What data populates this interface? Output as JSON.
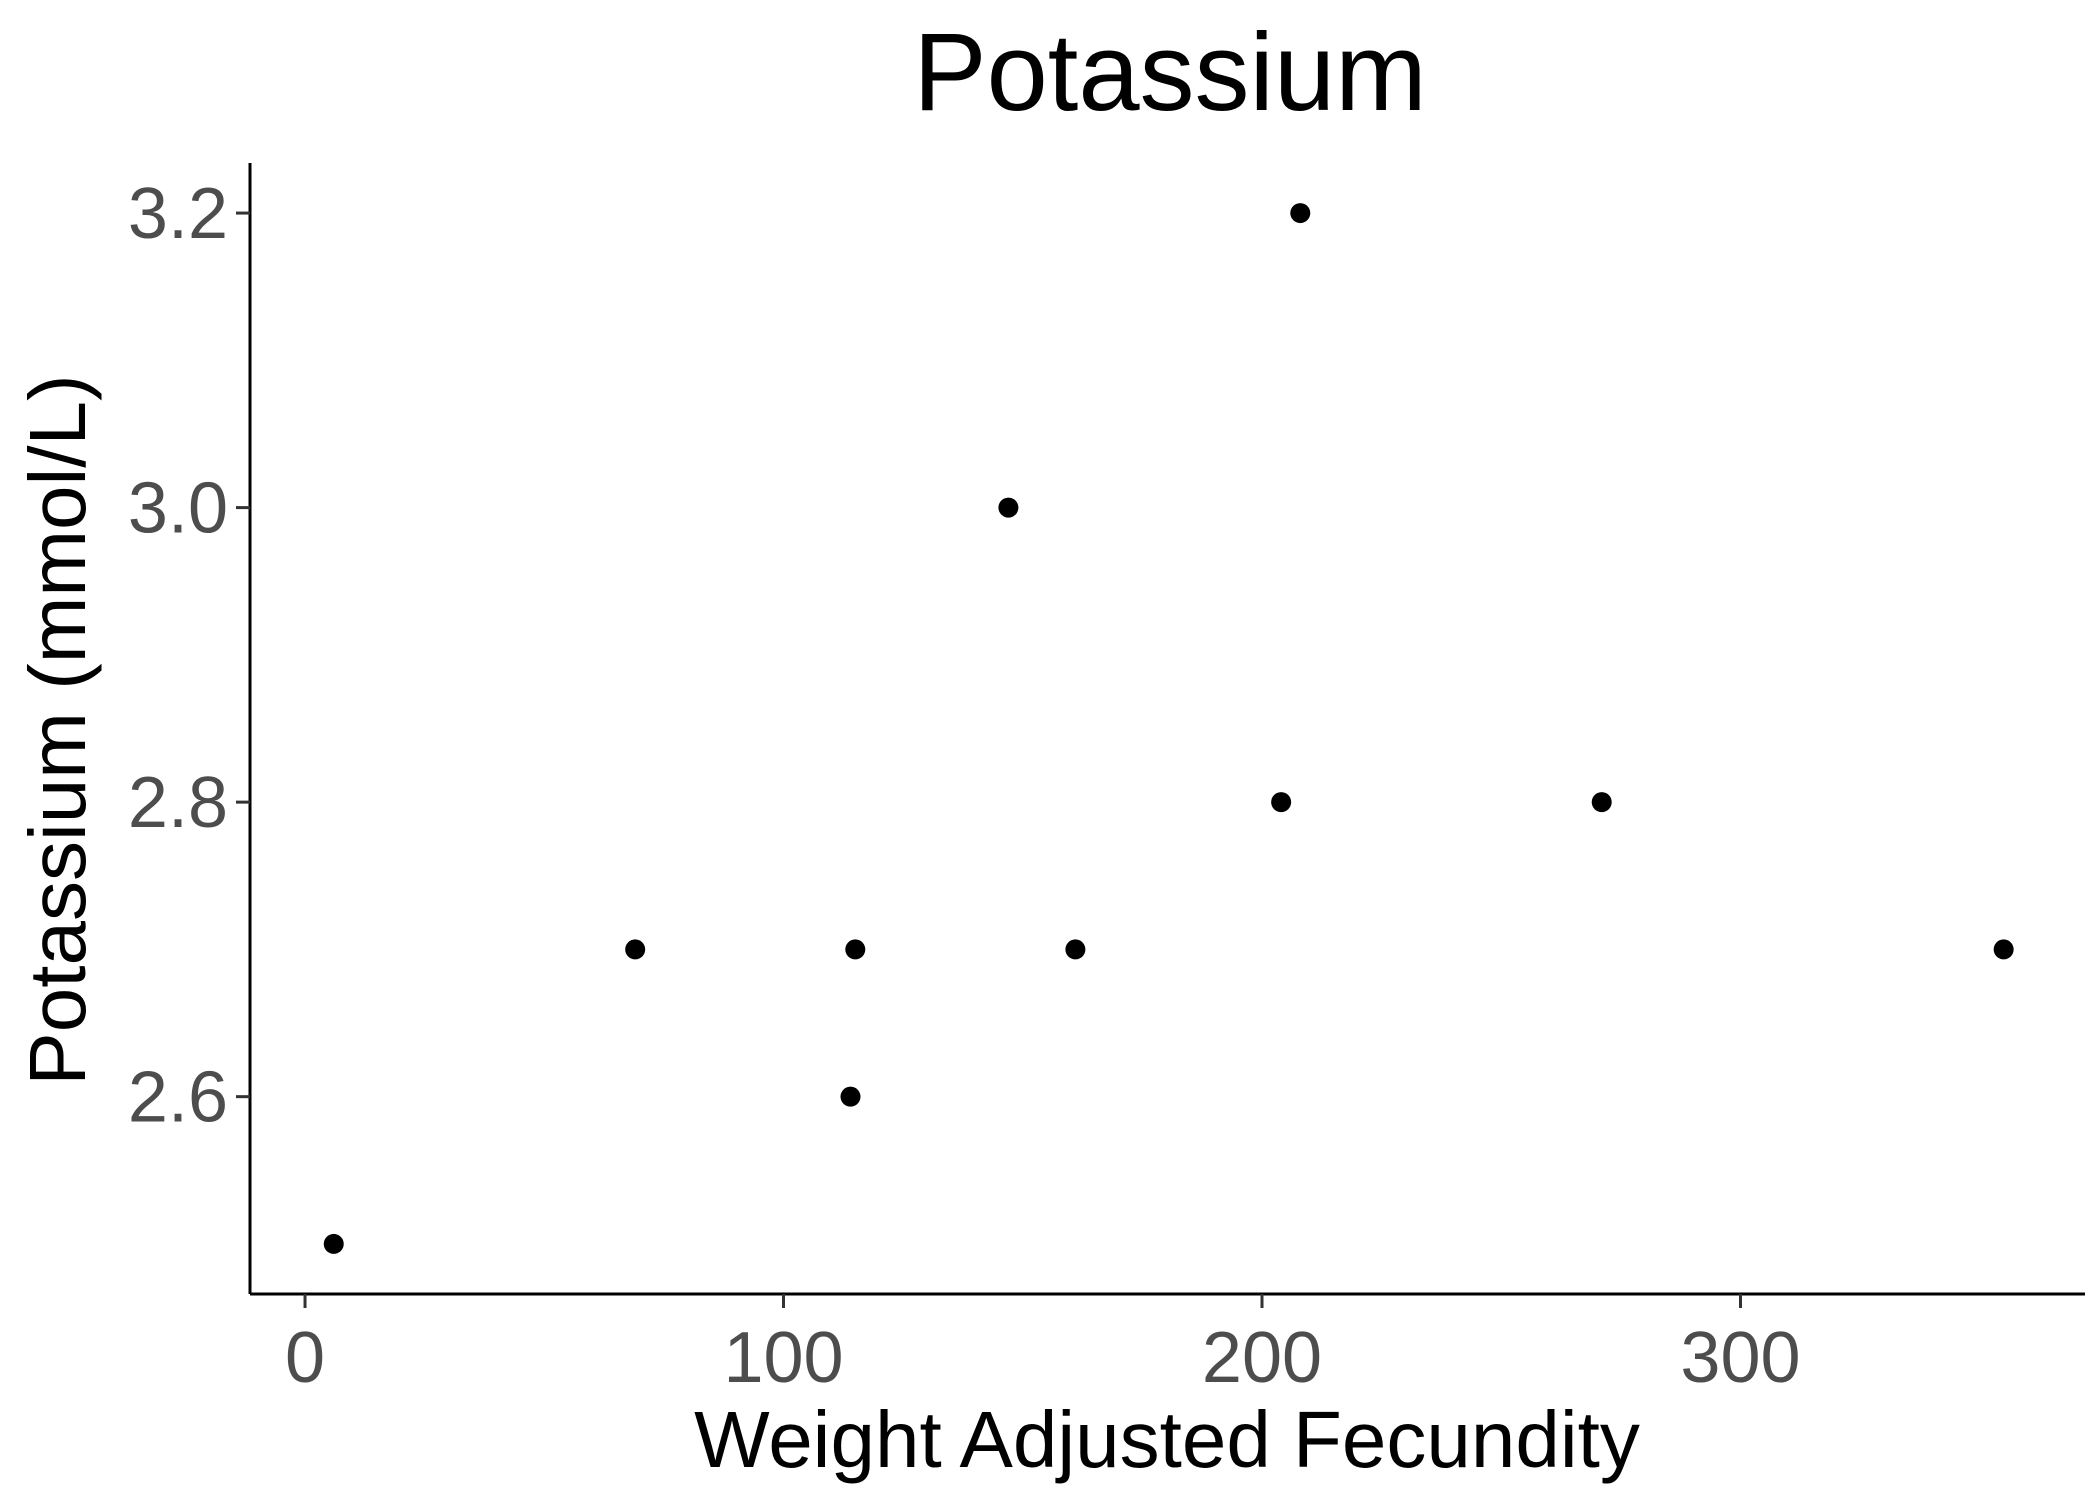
{
  "chart_data": {
    "type": "scatter",
    "title": "Potassium",
    "xlabel": "Weight Adjusted Fecundity",
    "ylabel": "Potassium (mmol/L)",
    "xlim": [
      -11.5,
      372
    ],
    "ylim": [
      2.466,
      3.234
    ],
    "x_ticks": [
      0,
      100,
      200,
      300
    ],
    "x_tick_labels": [
      "0",
      "100",
      "200",
      "300"
    ],
    "y_ticks": [
      2.6,
      2.8,
      3.0,
      3.2
    ],
    "y_tick_labels": [
      "2.6",
      "2.8",
      "3.0",
      "3.2"
    ],
    "grid": false,
    "point_color": "#000000",
    "points": [
      {
        "x": 6,
        "y": 2.5
      },
      {
        "x": 69,
        "y": 2.7
      },
      {
        "x": 114,
        "y": 2.6
      },
      {
        "x": 115,
        "y": 2.7
      },
      {
        "x": 147,
        "y": 3.0
      },
      {
        "x": 161,
        "y": 2.7
      },
      {
        "x": 204,
        "y": 2.8
      },
      {
        "x": 208,
        "y": 3.2
      },
      {
        "x": 271,
        "y": 2.8
      },
      {
        "x": 355,
        "y": 2.7
      }
    ]
  }
}
